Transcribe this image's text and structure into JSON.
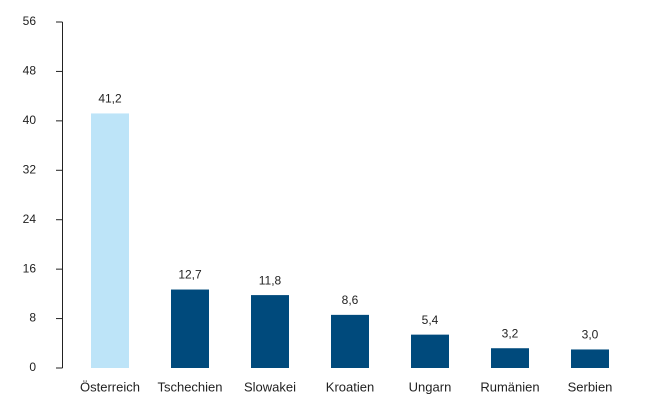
{
  "chart_data": {
    "type": "bar",
    "categories": [
      "Österreich",
      "Tschechien",
      "Slowakei",
      "Kroatien",
      "Ungarn",
      "Rumänien",
      "Serbien"
    ],
    "values": [
      41.2,
      12.7,
      11.8,
      8.6,
      5.4,
      3.2,
      3.0
    ],
    "value_labels": [
      "41,2",
      "12,7",
      "11,8",
      "8,6",
      "5,4",
      "3,2",
      "3,0"
    ],
    "colors": [
      "#bde4f8",
      "#004a7c",
      "#004a7c",
      "#004a7c",
      "#004a7c",
      "#004a7c",
      "#004a7c"
    ],
    "ylim": [
      0,
      56
    ],
    "yticks": [
      0,
      8,
      16,
      24,
      32,
      40,
      48,
      56
    ],
    "grid": false
  }
}
